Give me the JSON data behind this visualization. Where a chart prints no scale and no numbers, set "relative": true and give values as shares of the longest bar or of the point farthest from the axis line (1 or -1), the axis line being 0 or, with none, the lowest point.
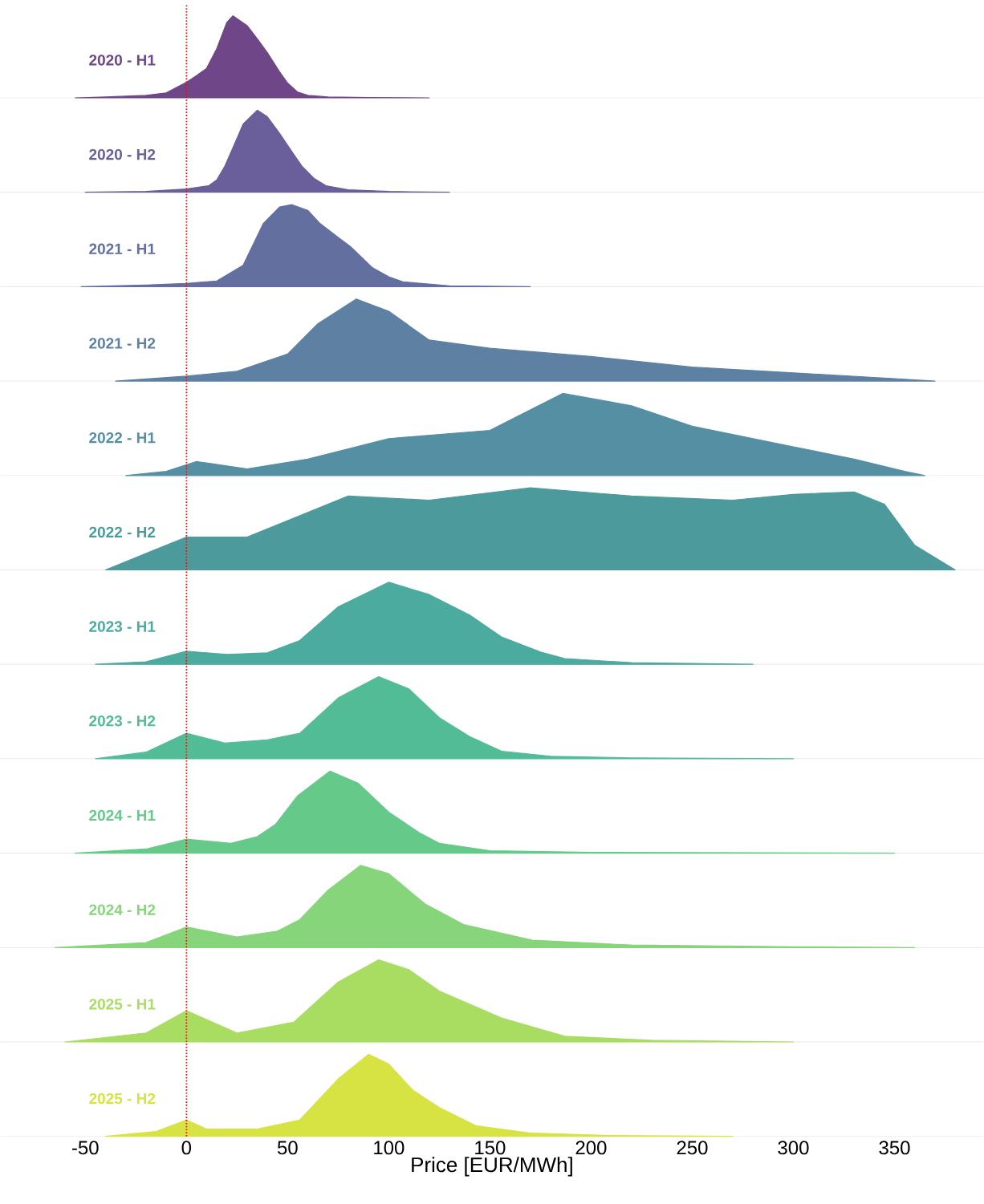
{
  "chart_data": [
    {
      "type": "area",
      "relative": true,
      "xlim": [
        -92,
        394
      ],
      "tick_labels": false,
      "ref_lines": [
        {
          "axis": "x",
          "value": 0,
          "color": "#ff0000",
          "line_style": "dotted"
        }
      ],
      "series": [
        {
          "name": "2020 - H1",
          "color": "#6f4688",
          "x": [
            -55,
            -40,
            -20,
            -10,
            0,
            5,
            10,
            15,
            20,
            23,
            30,
            35,
            40,
            46,
            50,
            55,
            60,
            70,
            90,
            120
          ],
          "values": [
            0,
            0.01,
            0.03,
            0.06,
            0.19,
            0.27,
            0.36,
            0.6,
            0.92,
            1,
            0.88,
            0.72,
            0.55,
            0.32,
            0.18,
            0.07,
            0.03,
            0.01,
            0.003,
            0
          ]
        }
      ]
    },
    {
      "type": "area",
      "relative": true,
      "xlim": [
        -92,
        394
      ],
      "tick_labels": false,
      "ref_lines": [
        {
          "axis": "x",
          "value": 0,
          "color": "#ff0000",
          "line_style": "dotted"
        }
      ],
      "series": [
        {
          "name": "2020 - H2",
          "color": "#6a5e9b",
          "x": [
            -50,
            -20,
            0,
            11,
            15,
            19,
            24,
            28,
            35,
            40,
            46,
            52,
            57,
            63,
            69,
            80,
            100,
            130
          ],
          "values": [
            0,
            0.01,
            0.04,
            0.08,
            0.15,
            0.32,
            0.6,
            0.83,
            1,
            0.92,
            0.72,
            0.5,
            0.32,
            0.17,
            0.08,
            0.03,
            0.01,
            0
          ]
        }
      ]
    },
    {
      "type": "area",
      "relative": true,
      "xlim": [
        -92,
        394
      ],
      "tick_labels": false,
      "ref_lines": [
        {
          "axis": "x",
          "value": 0,
          "color": "#ff0000",
          "line_style": "dotted"
        }
      ],
      "series": [
        {
          "name": "2021 - H1",
          "color": "#63709f",
          "x": [
            -52,
            -20,
            0,
            15,
            28,
            38,
            46,
            52,
            60,
            66,
            75,
            81,
            92,
            100,
            107,
            130,
            170
          ],
          "values": [
            0,
            0.02,
            0.04,
            0.07,
            0.26,
            0.77,
            0.97,
            1,
            0.93,
            0.77,
            0.6,
            0.49,
            0.23,
            0.12,
            0.06,
            0.01,
            0
          ]
        }
      ]
    },
    {
      "type": "area",
      "relative": true,
      "xlim": [
        -92,
        394
      ],
      "tick_labels": false,
      "ref_lines": [
        {
          "axis": "x",
          "value": 0,
          "color": "#ff0000",
          "line_style": "dotted"
        }
      ],
      "series": [
        {
          "name": "2021 - H2",
          "color": "#5e80a3",
          "x": [
            -35,
            0,
            25,
            50,
            65,
            84,
            100,
            120,
            150,
            200,
            250,
            300,
            350,
            370
          ],
          "values": [
            0,
            0.06,
            0.12,
            0.33,
            0.7,
            1,
            0.85,
            0.5,
            0.4,
            0.3,
            0.17,
            0.1,
            0.03,
            0
          ]
        }
      ]
    },
    {
      "type": "area",
      "relative": true,
      "xlim": [
        -92,
        394
      ],
      "tick_labels": false,
      "ref_lines": [
        {
          "axis": "x",
          "value": 0,
          "color": "#ff0000",
          "line_style": "dotted"
        }
      ],
      "series": [
        {
          "name": "2022 - H1",
          "color": "#548fa3",
          "x": [
            -30,
            -10,
            5,
            30,
            60,
            100,
            150,
            186,
            220,
            250,
            300,
            330,
            355,
            365
          ],
          "values": [
            0,
            0.05,
            0.17,
            0.08,
            0.2,
            0.45,
            0.55,
            1,
            0.85,
            0.6,
            0.35,
            0.2,
            0.05,
            0
          ]
        }
      ]
    },
    {
      "type": "area",
      "relative": true,
      "xlim": [
        -92,
        394
      ],
      "tick_labels": false,
      "ref_lines": [
        {
          "axis": "x",
          "value": 0,
          "color": "#ff0000",
          "line_style": "dotted"
        }
      ],
      "series": [
        {
          "name": "2022 - H2",
          "color": "#4c9a9c",
          "x": [
            -40,
            -15,
            0,
            30,
            80,
            120,
            170,
            220,
            270,
            300,
            330,
            345,
            360,
            380
          ],
          "values": [
            0,
            0.25,
            0.4,
            0.4,
            0.9,
            0.85,
            1,
            0.9,
            0.85,
            0.92,
            0.95,
            0.8,
            0.3,
            0
          ]
        }
      ]
    },
    {
      "type": "area",
      "relative": true,
      "xlim": [
        -92,
        394
      ],
      "tick_labels": false,
      "ref_lines": [
        {
          "axis": "x",
          "value": 0,
          "color": "#ff0000",
          "line_style": "dotted"
        }
      ],
      "series": [
        {
          "name": "2023 - H1",
          "color": "#4aab9e",
          "x": [
            -45,
            -20,
            0,
            20,
            40,
            56,
            75,
            100,
            120,
            140,
            156,
            175,
            187,
            220,
            280
          ],
          "values": [
            0,
            0.03,
            0.16,
            0.12,
            0.14,
            0.29,
            0.7,
            1,
            0.85,
            0.6,
            0.33,
            0.15,
            0.07,
            0.02,
            0
          ]
        }
      ]
    },
    {
      "type": "area",
      "relative": true,
      "xlim": [
        -92,
        394
      ],
      "tick_labels": false,
      "ref_lines": [
        {
          "axis": "x",
          "value": 0,
          "color": "#ff0000",
          "line_style": "dotted"
        }
      ],
      "series": [
        {
          "name": "2023 - H2",
          "color": "#52bc97",
          "x": [
            -45,
            -20,
            0,
            19,
            40,
            56,
            75,
            95,
            110,
            125,
            140,
            156,
            180,
            220,
            300
          ],
          "values": [
            0,
            0.08,
            0.31,
            0.19,
            0.23,
            0.31,
            0.74,
            1,
            0.85,
            0.5,
            0.27,
            0.09,
            0.03,
            0.01,
            0
          ]
        }
      ]
    },
    {
      "type": "area",
      "relative": true,
      "xlim": [
        -92,
        394
      ],
      "tick_labels": false,
      "ref_lines": [
        {
          "axis": "x",
          "value": 0,
          "color": "#ff0000",
          "line_style": "dotted"
        }
      ],
      "series": [
        {
          "name": "2024 - H1",
          "color": "#65c98a",
          "x": [
            -55,
            -20,
            0,
            22,
            35,
            44,
            55,
            71,
            85,
            100,
            115,
            125,
            150,
            200,
            350
          ],
          "values": [
            0,
            0.05,
            0.17,
            0.12,
            0.2,
            0.35,
            0.7,
            1,
            0.85,
            0.5,
            0.25,
            0.12,
            0.03,
            0.01,
            0
          ]
        }
      ]
    },
    {
      "type": "area",
      "relative": true,
      "xlim": [
        -92,
        394
      ],
      "tick_labels": false,
      "ref_lines": [
        {
          "axis": "x",
          "value": 0,
          "color": "#ff0000",
          "line_style": "dotted"
        }
      ],
      "series": [
        {
          "name": "2024 - H2",
          "color": "#86d57a",
          "x": [
            -65,
            -20,
            0,
            25,
            45,
            56,
            70,
            86,
            100,
            118,
            137,
            171,
            220,
            300,
            360
          ],
          "values": [
            0,
            0.06,
            0.25,
            0.13,
            0.2,
            0.34,
            0.7,
            1,
            0.9,
            0.53,
            0.28,
            0.09,
            0.03,
            0.01,
            0
          ]
        }
      ]
    },
    {
      "type": "area",
      "relative": true,
      "xlim": [
        -92,
        394
      ],
      "tick_labels": false,
      "ref_lines": [
        {
          "axis": "x",
          "value": 0,
          "color": "#ff0000",
          "line_style": "dotted"
        }
      ],
      "series": [
        {
          "name": "2025 - H1",
          "color": "#a9dd62",
          "x": [
            -60,
            -20,
            0,
            25,
            53,
            75,
            95,
            110,
            125,
            156,
            187,
            230,
            300
          ],
          "values": [
            0,
            0.11,
            0.38,
            0.11,
            0.24,
            0.73,
            1,
            0.88,
            0.62,
            0.29,
            0.07,
            0.02,
            0
          ]
        }
      ]
    },
    {
      "type": "area",
      "relative": true,
      "xlim": [
        -92,
        394
      ],
      "tick_labels": "x",
      "xticks": [
        -50,
        0,
        50,
        100,
        150,
        200,
        250,
        300,
        350
      ],
      "xlabel": "Price [EUR/MWh]",
      "ref_lines": [
        {
          "axis": "x",
          "value": 0,
          "color": "#ff0000",
          "line_style": "dotted"
        }
      ],
      "series": [
        {
          "name": "2025 - H2",
          "color": "#d6e342",
          "x": [
            -40,
            -15,
            0,
            10,
            35,
            56,
            75,
            90,
            100,
            112,
            125,
            143,
            170,
            210,
            270
          ],
          "values": [
            0,
            0.06,
            0.2,
            0.09,
            0.09,
            0.2,
            0.7,
            1,
            0.88,
            0.56,
            0.35,
            0.13,
            0.04,
            0.01,
            0
          ]
        }
      ]
    }
  ]
}
